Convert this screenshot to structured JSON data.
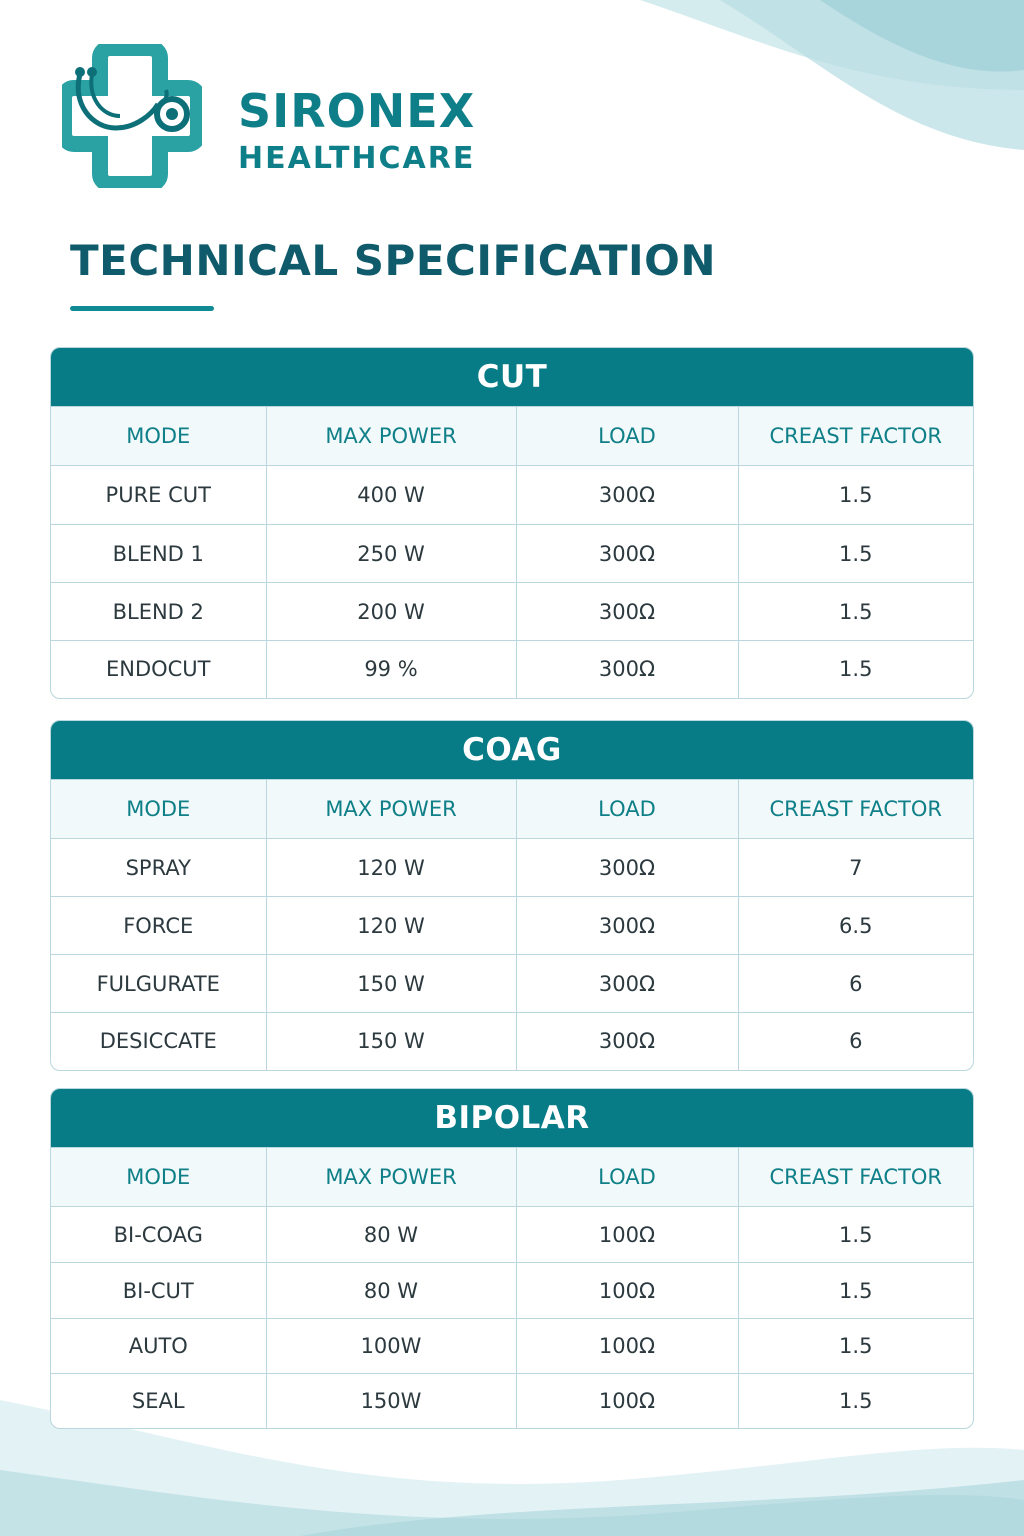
{
  "brand": {
    "name": "SIRONEX",
    "subtitle": "HEALTHCARE",
    "logo_icon": "medical-cross-stethoscope-icon"
  },
  "page_title": "TECHNICAL SPECIFICATION",
  "colors": {
    "primary": "#087c86",
    "title": "#0f5b6b",
    "header_bg": "#f1f9fa",
    "border": "#b9d7dc"
  },
  "sections": [
    {
      "title": "CUT",
      "columns": [
        "MODE",
        "MAX POWER",
        "LOAD",
        "CREAST FACTOR"
      ],
      "rows": [
        [
          "PURE CUT",
          "400 W",
          "300Ω",
          "1.5"
        ],
        [
          "BLEND 1",
          "250 W",
          "300Ω",
          "1.5"
        ],
        [
          "BLEND 2",
          "200 W",
          "300Ω",
          "1.5"
        ],
        [
          "ENDOCUT",
          "99 %",
          "300Ω",
          "1.5"
        ]
      ]
    },
    {
      "title": "COAG",
      "columns": [
        "MODE",
        "MAX POWER",
        "LOAD",
        "CREAST FACTOR"
      ],
      "rows": [
        [
          "SPRAY",
          "120 W",
          "300Ω",
          "7"
        ],
        [
          "FORCE",
          "120 W",
          "300Ω",
          "6.5"
        ],
        [
          "FULGURATE",
          "150 W",
          "300Ω",
          "6"
        ],
        [
          "DESICCATE",
          "150 W",
          "300Ω",
          "6"
        ]
      ]
    },
    {
      "title": "BIPOLAR",
      "columns": [
        "MODE",
        "MAX POWER",
        "LOAD",
        "CREAST FACTOR"
      ],
      "rows": [
        [
          "BI-COAG",
          "80 W",
          "100Ω",
          "1.5"
        ],
        [
          "BI-CUT",
          "80 W",
          "100Ω",
          "1.5"
        ],
        [
          "AUTO",
          "100W",
          "100Ω",
          "1.5"
        ],
        [
          "SEAL",
          "150W",
          "100Ω",
          "1.5"
        ]
      ]
    }
  ]
}
